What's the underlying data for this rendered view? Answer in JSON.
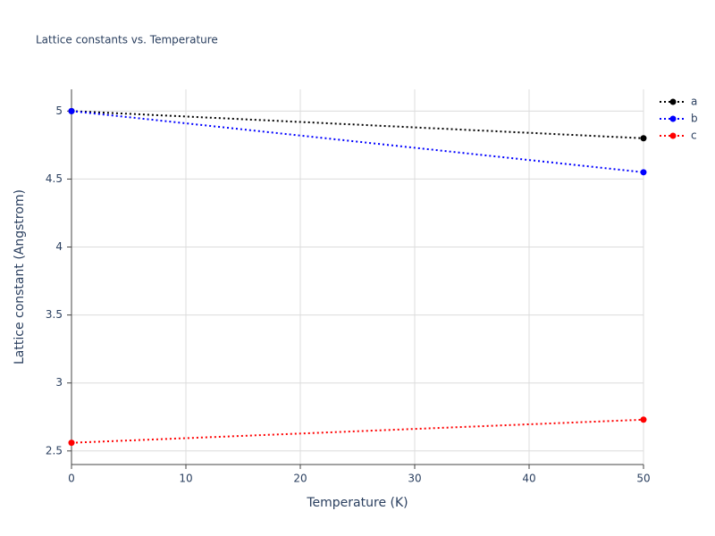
{
  "chart_data": {
    "type": "line",
    "title": "Lattice constants vs. Temperature",
    "x_label": "Temperature (K)",
    "y_label": "Lattice constant (Angstrom)",
    "x": [
      0,
      50
    ],
    "series": [
      {
        "name": "a",
        "color": "#000000",
        "values": [
          5.0,
          4.8
        ]
      },
      {
        "name": "b",
        "color": "#0000ff",
        "values": [
          5.0,
          4.55
        ]
      },
      {
        "name": "c",
        "color": "#ff0000",
        "values": [
          2.56,
          2.73
        ]
      }
    ],
    "xlim": [
      0,
      50
    ],
    "xticks": [
      0,
      10,
      20,
      30,
      40,
      50
    ],
    "ylim": [
      2.4,
      5.16
    ],
    "yticks": [
      2.5,
      3,
      3.5,
      4,
      4.5,
      5
    ],
    "grid": true,
    "legend": "top-right"
  }
}
